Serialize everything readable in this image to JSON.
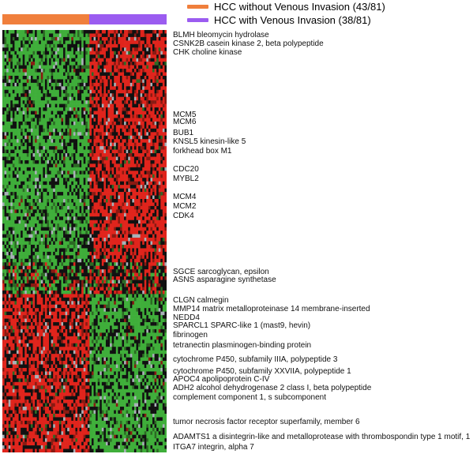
{
  "legend": [
    {
      "label": "HCC without Venous Invasion (43/81)",
      "color": "#f07f3c"
    },
    {
      "label": "HCC with Venous Invasion (38/81)",
      "color": "#9b5cf0"
    }
  ],
  "chart_data": {
    "type": "heatmap",
    "groups": [
      {
        "name": "HCC without Venous Invasion",
        "count": 43,
        "total": 81,
        "color": "#f07f3c"
      },
      {
        "name": "HCC with Venous Invasion",
        "count": 38,
        "total": 81,
        "color": "#9b5cf0"
      }
    ],
    "colors": {
      "high": "#e0241c",
      "neutral": "#111111",
      "low": "#3fae3a",
      "missing": "#a9b1b8"
    },
    "gene_labels": [
      "BLMH bleomycin hydrolase",
      "CSNK2B casein kinase 2, beta polypeptide",
      "CHK choline kinase",
      "MCM5",
      "MCM6",
      "BUB1",
      "KNSL5 kinesin-like 5",
      "forkhead box M1",
      "CDC20",
      "MYBL2",
      "MCM4",
      "MCM2",
      "CDK4",
      "SGCE sarcoglycan, epsilon",
      "ASNS asparagine synthetase",
      "CLGN calmegin",
      "MMP14 matrix metalloproteinase 14 membrane-inserted",
      "NEDD4",
      "SPARCL1 SPARC-like 1 (mast9, hevin)",
      "fibrinogen",
      "tetranectin plasminogen-binding protein",
      "cytochrome P450, subfamily IIIA, polypeptide 3",
      "cytochrome P450, subfamily XXVIIA, polypeptide 1",
      "APOC4 apolipoprotein C-IV",
      "ADH2 alcohol dehydrogenase 2 class I, beta polypeptide",
      "complement component 1, s subcomponent",
      "tumor necrosis factor receptor superfamily, member 6",
      "ADAMTS1 a disintegrin-like and metalloprotease with thrombospondin type 1 motif, 1",
      "ITGA7 integrin, alpha 7"
    ]
  }
}
